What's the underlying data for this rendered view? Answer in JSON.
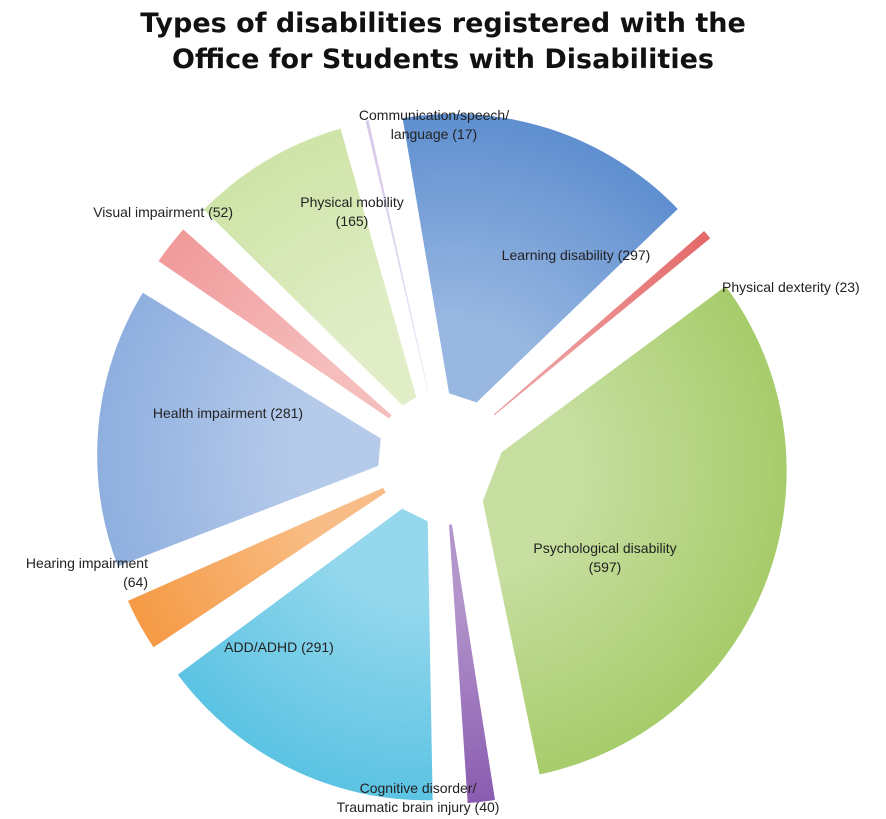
{
  "chart_data": {
    "type": "pie",
    "title_line1": "Types of disabilities registered with the",
    "title_line2": "Office for Students with Disabilities",
    "slices": [
      {
        "label_lines": [
          "Learning disability (297)"
        ],
        "name": "Learning disability",
        "value": 297,
        "color": "#5f8fd0"
      },
      {
        "label_lines": [
          "Physical dexterity (23)"
        ],
        "name": "Physical dexterity",
        "value": 23,
        "color": "#e46868"
      },
      {
        "label_lines": [
          "Psychological disability",
          "(597)"
        ],
        "name": "Psychological disability",
        "value": 597,
        "color": "#a7cc6b"
      },
      {
        "label_lines": [
          "Cognitive disorder/",
          "Traumatic brain injury (40)"
        ],
        "name": "Cognitive disorder/Traumatic brain injury",
        "value": 40,
        "color": "#8a5cb0"
      },
      {
        "label_lines": [
          "ADD/ADHD (291)"
        ],
        "name": "ADD/ADHD",
        "value": 291,
        "color": "#5cc3e3"
      },
      {
        "label_lines": [
          "Hearing impairment",
          "(64)"
        ],
        "name": "Hearing impairment",
        "value": 64,
        "color": "#f59a45"
      },
      {
        "label_lines": [
          "Health impairment (281)"
        ],
        "name": "Health impairment",
        "value": 281,
        "color": "#8fafdf"
      },
      {
        "label_lines": [
          "Visual impairment (52)"
        ],
        "name": "Visual impairment",
        "value": 52,
        "color": "#f19a9a"
      },
      {
        "label_lines": [
          "Physical mobility",
          "(165)"
        ],
        "name": "Physical mobility",
        "value": 165,
        "color": "#cfe4a8"
      },
      {
        "label_lines": [
          "Communication/speech/",
          "language (17)"
        ],
        "name": "Communication/speech/language",
        "value": 17,
        "color": "#d6c8ea"
      }
    ]
  }
}
